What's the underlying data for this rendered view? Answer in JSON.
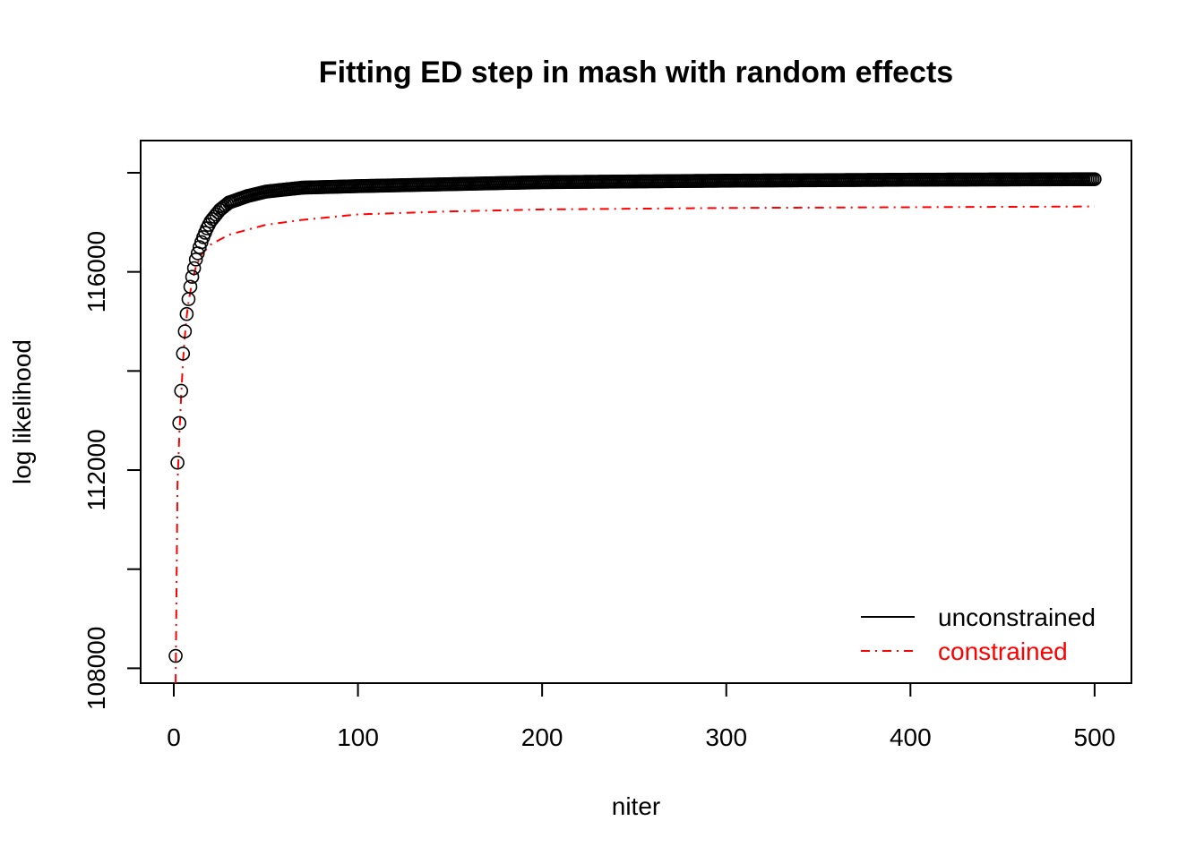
{
  "chart_data": {
    "type": "scatter",
    "title": "Fitting ED step in mash with random effects",
    "xlabel": "niter",
    "ylabel": "log likelihood",
    "xlim": [
      -18,
      520
    ],
    "ylim": [
      107700,
      118650
    ],
    "x_ticks": [
      0,
      100,
      200,
      300,
      400,
      500
    ],
    "x_tick_labels": [
      "0",
      "100",
      "200",
      "300",
      "400",
      "500"
    ],
    "y_ticks": [
      108000,
      110000,
      112000,
      114000,
      116000,
      118000
    ],
    "y_tick_labels": [
      "108000",
      "",
      "112000",
      "",
      "116000",
      ""
    ],
    "grid": false,
    "legend_position": "bottom-right",
    "series": [
      {
        "name": "unconstrained",
        "style": "points-open-circle",
        "color": "#000000",
        "x_range": [
          1,
          500
        ],
        "anchors": [
          [
            1,
            108250
          ],
          [
            2,
            112150
          ],
          [
            3,
            112950
          ],
          [
            4,
            113600
          ],
          [
            5,
            114350
          ],
          [
            6,
            114800
          ],
          [
            7,
            115150
          ],
          [
            8,
            115450
          ],
          [
            9,
            115700
          ],
          [
            10,
            115900
          ],
          [
            12,
            116250
          ],
          [
            14,
            116500
          ],
          [
            16,
            116700
          ],
          [
            18,
            116880
          ],
          [
            20,
            117020
          ],
          [
            25,
            117250
          ],
          [
            30,
            117400
          ],
          [
            40,
            117530
          ],
          [
            50,
            117620
          ],
          [
            70,
            117700
          ],
          [
            100,
            117730
          ],
          [
            150,
            117770
          ],
          [
            200,
            117810
          ],
          [
            300,
            117840
          ],
          [
            400,
            117860
          ],
          [
            500,
            117870
          ]
        ]
      },
      {
        "name": "constrained",
        "style": "line-dashdot",
        "color": "#ff0000",
        "x_range": [
          1,
          500
        ],
        "anchors": [
          [
            1,
            107700
          ],
          [
            2,
            111700
          ],
          [
            3,
            112700
          ],
          [
            4,
            113500
          ],
          [
            5,
            114200
          ],
          [
            6,
            114700
          ],
          [
            7,
            115100
          ],
          [
            8,
            115400
          ],
          [
            10,
            115800
          ],
          [
            12,
            116100
          ],
          [
            15,
            116350
          ],
          [
            20,
            116550
          ],
          [
            30,
            116750
          ],
          [
            50,
            116950
          ],
          [
            70,
            117050
          ],
          [
            100,
            117160
          ],
          [
            150,
            117220
          ],
          [
            200,
            117260
          ],
          [
            300,
            117290
          ],
          [
            400,
            117305
          ],
          [
            500,
            117320
          ]
        ]
      }
    ],
    "legend": [
      {
        "label": "unconstrained",
        "color": "#000000",
        "style": "solid"
      },
      {
        "label": "constrained",
        "color": "#ff0000",
        "style": "dashdot"
      }
    ]
  }
}
